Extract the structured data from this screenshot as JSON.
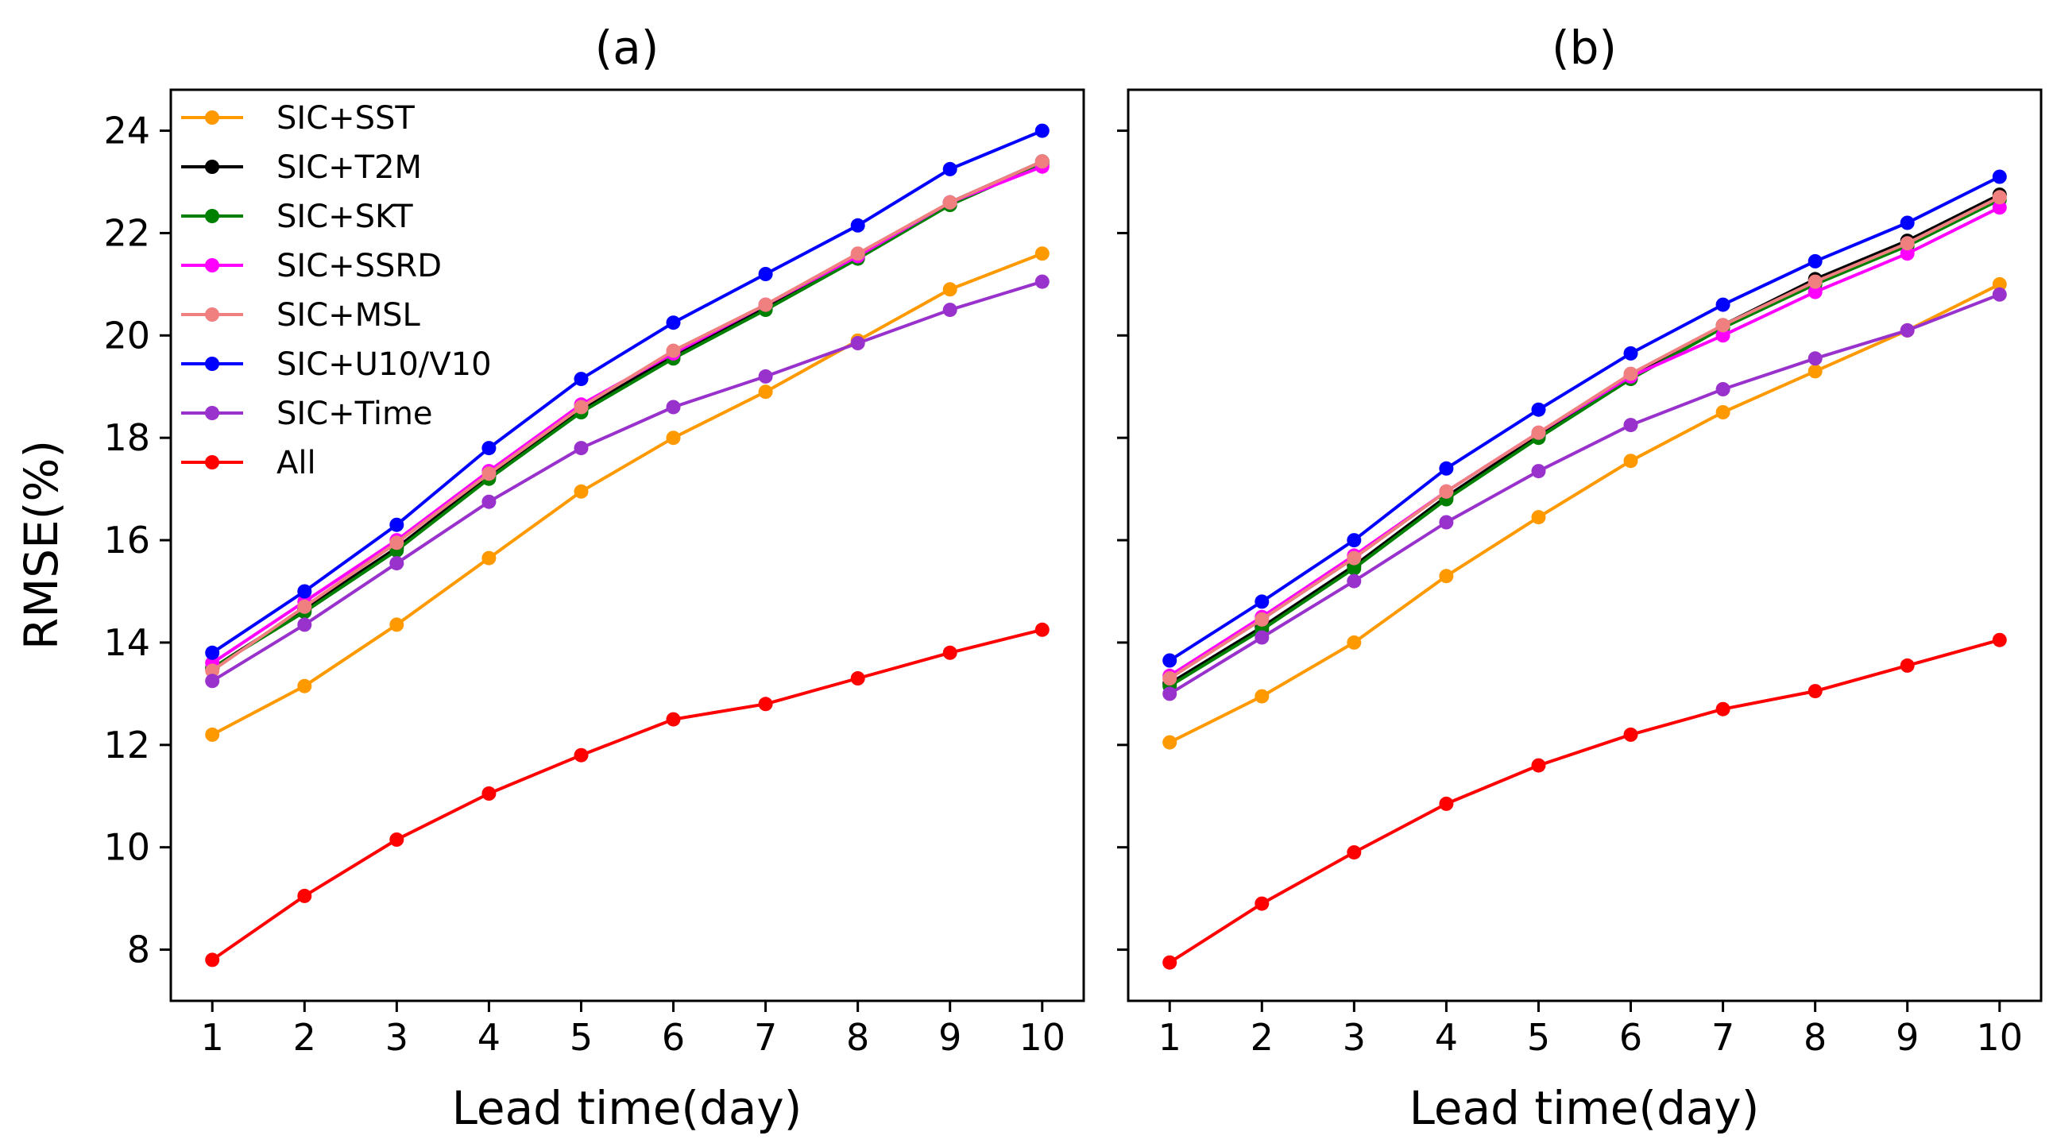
{
  "chart_data": [
    {
      "type": "line",
      "title": "(a)",
      "xlabel": "Lead time(day)",
      "ylabel": "RMSE(%)",
      "x": [
        1,
        2,
        3,
        4,
        5,
        6,
        7,
        8,
        9,
        10
      ],
      "xlim": [
        0.55,
        10.45
      ],
      "ylim": [
        7.0,
        24.8
      ],
      "xticks": [
        1,
        2,
        3,
        4,
        5,
        6,
        7,
        8,
        9,
        10
      ],
      "yticks": [
        8,
        10,
        12,
        14,
        16,
        18,
        20,
        22,
        24
      ],
      "show_yticklabels": true,
      "legend": "upper-left",
      "series": [
        {
          "name": "SIC+SST",
          "color": "#ff9900",
          "values": [
            12.2,
            13.15,
            14.35,
            15.65,
            16.95,
            18.0,
            18.9,
            19.9,
            20.9,
            21.6
          ]
        },
        {
          "name": "SIC+T2M",
          "color": "#000000",
          "values": [
            13.5,
            14.65,
            15.85,
            17.25,
            18.55,
            19.6,
            20.55,
            21.55,
            22.6,
            23.4
          ]
        },
        {
          "name": "SIC+SKT",
          "color": "#008000",
          "values": [
            13.5,
            14.6,
            15.8,
            17.2,
            18.5,
            19.55,
            20.5,
            21.5,
            22.55,
            23.35
          ]
        },
        {
          "name": "SIC+SSRD",
          "color": "#ff00ff",
          "values": [
            13.6,
            14.8,
            16.0,
            17.35,
            18.65,
            19.65,
            20.6,
            21.55,
            22.6,
            23.3
          ]
        },
        {
          "name": "SIC+MSL",
          "color": "#f08080",
          "values": [
            13.45,
            14.7,
            15.95,
            17.3,
            18.6,
            19.7,
            20.6,
            21.6,
            22.6,
            23.4
          ]
        },
        {
          "name": "SIC+U10/V10",
          "color": "#0000ff",
          "values": [
            13.8,
            15.0,
            16.3,
            17.8,
            19.15,
            20.25,
            21.2,
            22.15,
            23.25,
            24.0
          ]
        },
        {
          "name": "SIC+Time",
          "color": "#9932cc",
          "values": [
            13.25,
            14.35,
            15.55,
            16.75,
            17.8,
            18.6,
            19.2,
            19.85,
            20.5,
            21.05
          ]
        },
        {
          "name": "All",
          "color": "#ff0000",
          "values": [
            7.8,
            9.05,
            10.15,
            11.05,
            11.8,
            12.5,
            12.8,
            13.3,
            13.8,
            14.25
          ]
        }
      ]
    },
    {
      "type": "line",
      "title": "(b)",
      "xlabel": "Lead time(day)",
      "ylabel": "",
      "x": [
        1,
        2,
        3,
        4,
        5,
        6,
        7,
        8,
        9,
        10
      ],
      "xlim": [
        0.55,
        10.45
      ],
      "ylim": [
        7.0,
        24.8
      ],
      "xticks": [
        1,
        2,
        3,
        4,
        5,
        6,
        7,
        8,
        9,
        10
      ],
      "yticks": [
        8,
        10,
        12,
        14,
        16,
        18,
        20,
        22,
        24
      ],
      "show_yticklabels": false,
      "legend": "",
      "series": [
        {
          "name": "SIC+SST",
          "color": "#ff9900",
          "values": [
            12.05,
            12.95,
            14.0,
            15.3,
            16.45,
            17.55,
            18.5,
            19.3,
            20.1,
            21.0
          ]
        },
        {
          "name": "SIC+T2M",
          "color": "#000000",
          "values": [
            13.2,
            14.3,
            15.5,
            16.85,
            18.05,
            19.2,
            20.2,
            21.1,
            21.85,
            22.75
          ]
        },
        {
          "name": "SIC+SKT",
          "color": "#008000",
          "values": [
            13.15,
            14.25,
            15.45,
            16.8,
            18.0,
            19.15,
            20.15,
            21.0,
            21.75,
            22.65
          ]
        },
        {
          "name": "SIC+SSRD",
          "color": "#ff00ff",
          "values": [
            13.35,
            14.5,
            15.7,
            16.95,
            18.1,
            19.2,
            20.0,
            20.85,
            21.6,
            22.5
          ]
        },
        {
          "name": "SIC+MSL",
          "color": "#f08080",
          "values": [
            13.3,
            14.45,
            15.65,
            16.95,
            18.1,
            19.25,
            20.2,
            21.05,
            21.8,
            22.7
          ]
        },
        {
          "name": "SIC+U10/V10",
          "color": "#0000ff",
          "values": [
            13.65,
            14.8,
            16.0,
            17.4,
            18.55,
            19.65,
            20.6,
            21.45,
            22.2,
            23.1
          ]
        },
        {
          "name": "SIC+Time",
          "color": "#9932cc",
          "values": [
            13.0,
            14.1,
            15.2,
            16.35,
            17.35,
            18.25,
            18.95,
            19.55,
            20.1,
            20.8
          ]
        },
        {
          "name": "All",
          "color": "#ff0000",
          "values": [
            7.75,
            8.9,
            9.9,
            10.85,
            11.6,
            12.2,
            12.7,
            13.05,
            13.55,
            14.05
          ]
        }
      ]
    }
  ]
}
